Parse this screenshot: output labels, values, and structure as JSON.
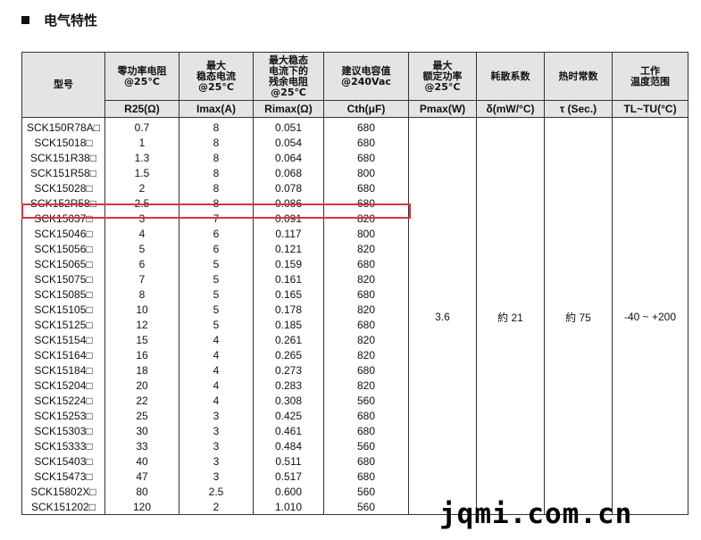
{
  "section_title": "电气特性",
  "headers": [
    "型号",
    "零功率电阻\n@25°C",
    "最大\n稳态电流\n@25°C",
    "最大稳态\n电流下的\n残余电阻\n@25℃",
    "建议电容值\n@240Vac",
    "最大\n额定功率\n@25°C",
    "耗散系数",
    "热时常数",
    "工作\n温度范围"
  ],
  "units": [
    "",
    "R25(Ω)",
    "Imax(A)",
    "Rimax(Ω)",
    "Cth(μF)",
    "Pmax(W)",
    "δ(mW/°C)",
    "τ (Sec.)",
    "TL~TU(°C)"
  ],
  "rows": [
    [
      "SCK150R78A□",
      "0.7",
      "8",
      "0.051",
      "680"
    ],
    [
      "SCK15018□",
      "1",
      "8",
      "0.054",
      "680"
    ],
    [
      "SCK151R38□",
      "1.3",
      "8",
      "0.064",
      "680"
    ],
    [
      "SCK151R58□",
      "1.5",
      "8",
      "0.068",
      "800"
    ],
    [
      "SCK15028□",
      "2",
      "8",
      "0.078",
      "680"
    ],
    [
      "SCK152R58□",
      "2.5",
      "8",
      "0.086",
      "680"
    ],
    [
      "SCK15037□",
      "3",
      "7",
      "0.091",
      "820"
    ],
    [
      "SCK15046□",
      "4",
      "6",
      "0.117",
      "800"
    ],
    [
      "SCK15056□",
      "5",
      "6",
      "0.121",
      "820"
    ],
    [
      "SCK15065□",
      "6",
      "5",
      "0.159",
      "680"
    ],
    [
      "SCK15075□",
      "7",
      "5",
      "0.161",
      "820"
    ],
    [
      "SCK15085□",
      "8",
      "5",
      "0.165",
      "680"
    ],
    [
      "SCK15105□",
      "10",
      "5",
      "0.178",
      "820"
    ],
    [
      "SCK15125□",
      "12",
      "5",
      "0.185",
      "680"
    ],
    [
      "SCK15154□",
      "15",
      "4",
      "0.261",
      "820"
    ],
    [
      "SCK15164□",
      "16",
      "4",
      "0.265",
      "820"
    ],
    [
      "SCK15184□",
      "18",
      "4",
      "0.273",
      "680"
    ],
    [
      "SCK15204□",
      "20",
      "4",
      "0.283",
      "820"
    ],
    [
      "SCK15224□",
      "22",
      "4",
      "0.308",
      "560"
    ],
    [
      "SCK15253□",
      "25",
      "3",
      "0.425",
      "680"
    ],
    [
      "SCK15303□",
      "30",
      "3",
      "0.461",
      "680"
    ],
    [
      "SCK15333□",
      "33",
      "3",
      "0.484",
      "560"
    ],
    [
      "SCK15403□",
      "40",
      "3",
      "0.511",
      "680"
    ],
    [
      "SCK15473□",
      "47",
      "3",
      "0.517",
      "680"
    ],
    [
      "SCK15802X□",
      "80",
      "2.5",
      "0.600",
      "560"
    ],
    [
      "SCK151202□",
      "120",
      "2",
      "1.010",
      "560"
    ]
  ],
  "shared": [
    "3.6",
    "約 21",
    "約 75",
    "-40 ~ +200"
  ],
  "highlight_row": 5,
  "highlight_color": "#e0303a",
  "watermark": "jqmi.com.cn"
}
